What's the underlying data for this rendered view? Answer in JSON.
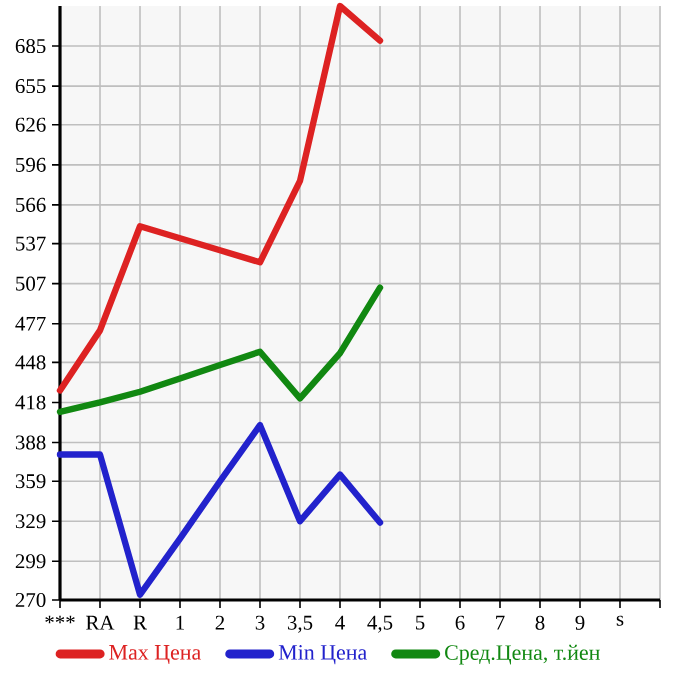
{
  "chart_data": {
    "type": "line",
    "categories": [
      "***",
      "RA",
      "R",
      "1",
      "2",
      "3",
      "3,5",
      "4",
      "4,5",
      "5",
      "6",
      "7",
      "8",
      "9",
      "s",
      null
    ],
    "series": [
      {
        "name": "Max Цена",
        "color": "#dd2222",
        "values": [
          427,
          472,
          550,
          541,
          532,
          523,
          584,
          715,
          689,
          null,
          null,
          null,
          null,
          null,
          null,
          null
        ]
      },
      {
        "name": "Min Цена",
        "color": "#2222cc",
        "values": [
          379,
          379,
          274,
          316,
          359,
          401,
          329,
          364,
          328,
          null,
          null,
          null,
          null,
          null,
          null,
          null
        ]
      },
      {
        "name": "Сред.Цена, т.йен",
        "color": "#118811",
        "values": [
          411,
          418,
          426,
          436,
          446,
          456,
          421,
          455,
          504,
          null,
          null,
          null,
          null,
          null,
          null,
          null
        ]
      }
    ],
    "ylim": [
      270,
      715
    ],
    "yticks": [
      270,
      299,
      329,
      359,
      388,
      418,
      448,
      477,
      507,
      537,
      566,
      596,
      626,
      655,
      685
    ],
    "grid": true,
    "legend": "bottom",
    "marker": "none",
    "line_style": "solid"
  }
}
